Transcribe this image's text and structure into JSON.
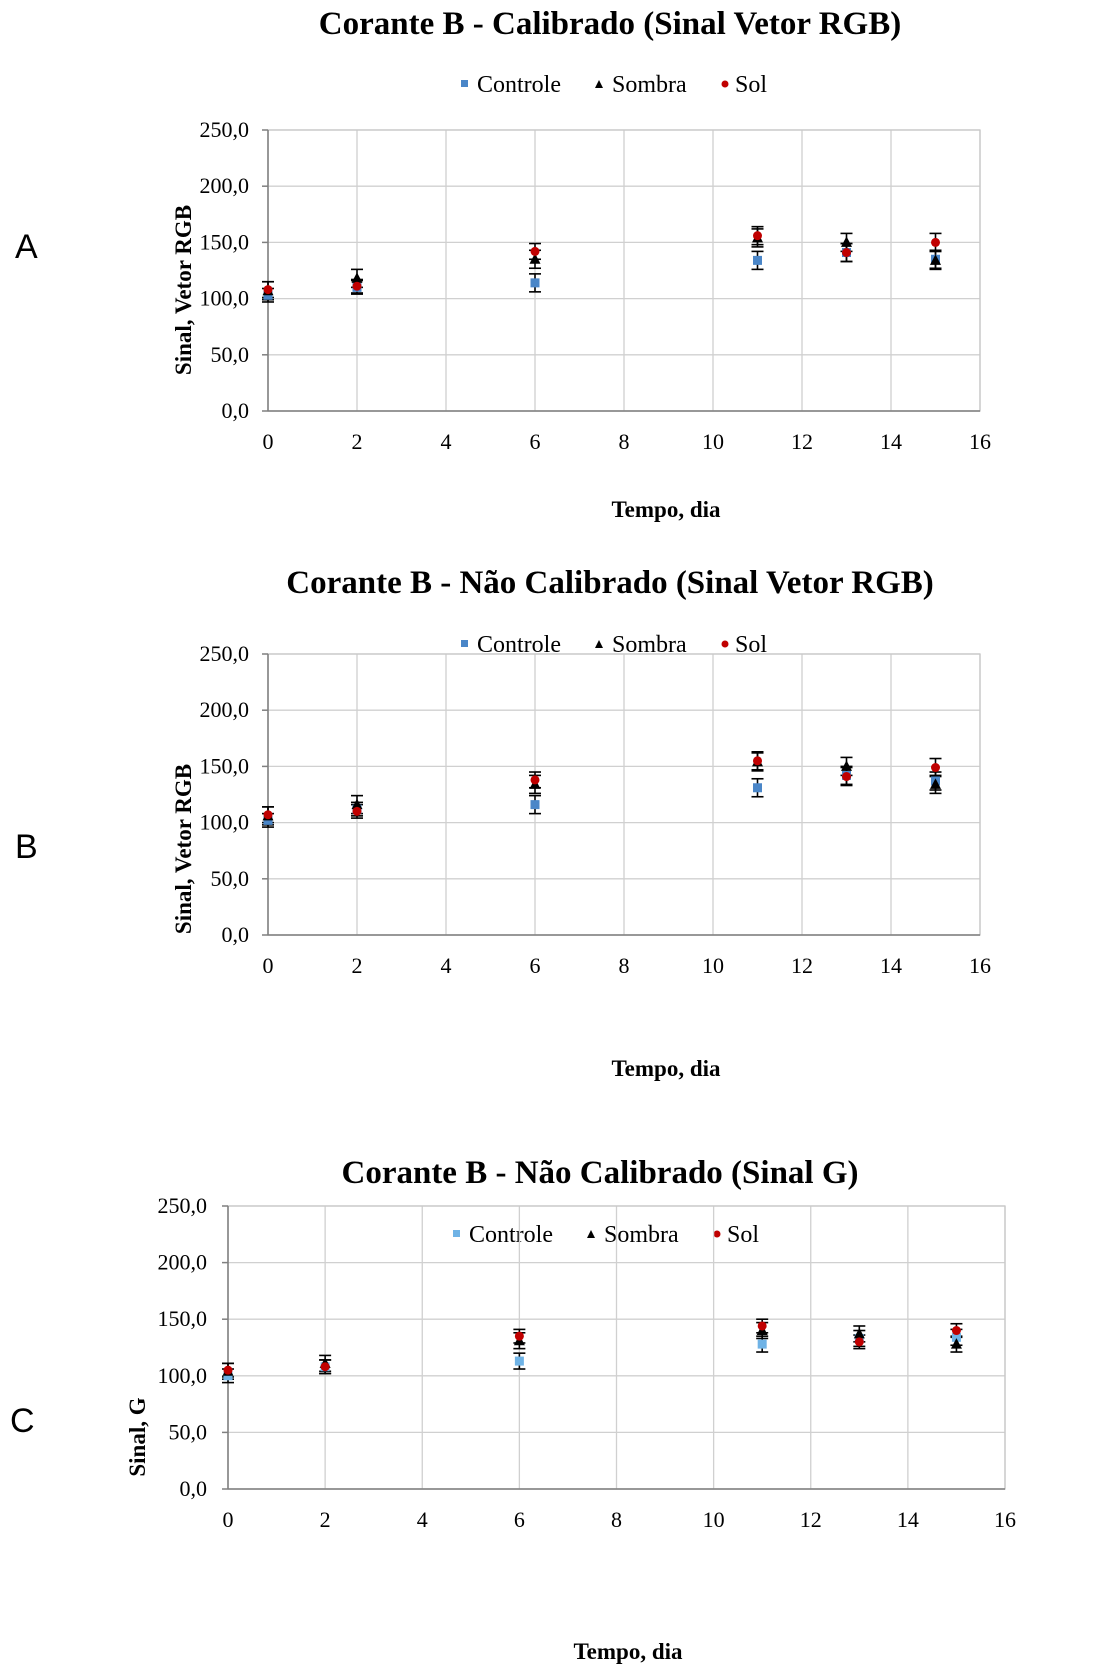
{
  "chart_data": [
    {
      "type": "scatter",
      "panel_label": "A",
      "title": "Corante B - Calibrado (Sinal Vetor RGB)",
      "xlabel": "Tempo, dia",
      "ylabel": "Sinal, Vetor  RGB",
      "xlim": [
        0,
        16
      ],
      "ylim": [
        0,
        250
      ],
      "x_ticks": [
        "0",
        "2",
        "4",
        "6",
        "8",
        "10",
        "12",
        "14",
        "16"
      ],
      "y_ticks": [
        "0,0",
        "50,0",
        "100,0",
        "150,0",
        "200,0",
        "250,0"
      ],
      "grid": true,
      "legend_position": "top-center",
      "series": [
        {
          "name": "Controle",
          "marker": "square",
          "color": "#4a86c8",
          "x": [
            0,
            2,
            6,
            11,
            13,
            15
          ],
          "y": [
            103,
            110,
            114,
            134,
            141,
            135
          ],
          "err": [
            6,
            6,
            8,
            8,
            8,
            8
          ]
        },
        {
          "name": "Sombra",
          "marker": "triangle",
          "color": "#000000",
          "x": [
            0,
            2,
            6,
            11,
            13,
            15
          ],
          "y": [
            107,
            118,
            135,
            154,
            150,
            134
          ],
          "err": [
            8,
            8,
            8,
            8,
            8,
            8
          ]
        },
        {
          "name": "Sol",
          "marker": "circle",
          "color": "#c00000",
          "x": [
            0,
            2,
            6,
            11,
            13,
            15
          ],
          "y": [
            108,
            111,
            142,
            156,
            141,
            150
          ],
          "err": [
            7,
            6,
            7,
            8,
            8,
            8
          ]
        }
      ]
    },
    {
      "type": "scatter",
      "panel_label": "B",
      "title": "Corante B - Não Calibrado (Sinal Vetor RGB)",
      "xlabel": "Tempo, dia",
      "ylabel": "Sinal, Vetor RGB",
      "xlim": [
        0,
        16
      ],
      "ylim": [
        0,
        250
      ],
      "x_ticks": [
        "0",
        "2",
        "4",
        "6",
        "8",
        "10",
        "12",
        "14",
        "16"
      ],
      "y_ticks": [
        "0,0",
        "50,0",
        "100,0",
        "150,0",
        "200,0",
        "250,0"
      ],
      "grid": true,
      "legend_position": "top-center",
      "series": [
        {
          "name": "Controle",
          "marker": "square",
          "color": "#4a86c8",
          "x": [
            0,
            2,
            6,
            11,
            13,
            15
          ],
          "y": [
            102,
            112,
            116,
            131,
            142,
            137
          ],
          "err": [
            6,
            6,
            8,
            8,
            8,
            8
          ]
        },
        {
          "name": "Sombra",
          "marker": "triangle",
          "color": "#000000",
          "x": [
            0,
            2,
            6,
            11,
            13,
            15
          ],
          "y": [
            106,
            116,
            134,
            154,
            150,
            134
          ],
          "err": [
            8,
            8,
            8,
            8,
            8,
            8
          ]
        },
        {
          "name": "Sol",
          "marker": "circle",
          "color": "#c00000",
          "x": [
            0,
            2,
            6,
            11,
            13,
            15
          ],
          "y": [
            107,
            110,
            138,
            155,
            141,
            149
          ],
          "err": [
            7,
            6,
            7,
            8,
            8,
            8
          ]
        }
      ]
    },
    {
      "type": "scatter",
      "panel_label": "C",
      "title": "Corante B - Não Calibrado (Sinal G)",
      "xlabel": "Tempo, dia",
      "ylabel": "Sinal, G",
      "xlim": [
        0,
        16
      ],
      "ylim": [
        0,
        250
      ],
      "x_ticks": [
        "0",
        "2",
        "4",
        "6",
        "8",
        "10",
        "12",
        "14",
        "16"
      ],
      "y_ticks": [
        "0,0",
        "50,0",
        "100,0",
        "150,0",
        "200,0",
        "250,0"
      ],
      "grid": true,
      "legend_position": "top-center",
      "series": [
        {
          "name": "Controle",
          "marker": "square",
          "color": "#6fb3e6",
          "x": [
            0,
            2,
            6,
            11,
            13,
            15
          ],
          "y": [
            100,
            108,
            113,
            128,
            133,
            134
          ],
          "err": [
            6,
            6,
            7,
            7,
            7,
            7
          ]
        },
        {
          "name": "Sombra",
          "marker": "triangle",
          "color": "#000000",
          "x": [
            0,
            2,
            6,
            11,
            13,
            15
          ],
          "y": [
            104,
            111,
            131,
            140,
            137,
            128
          ],
          "err": [
            7,
            7,
            7,
            7,
            7,
            7
          ]
        },
        {
          "name": "Sol",
          "marker": "circle",
          "color": "#c00000",
          "x": [
            0,
            2,
            6,
            11,
            13,
            15
          ],
          "y": [
            105,
            108,
            135,
            144,
            130,
            140
          ],
          "err": [
            6,
            6,
            6,
            6,
            6,
            6
          ]
        }
      ]
    }
  ]
}
